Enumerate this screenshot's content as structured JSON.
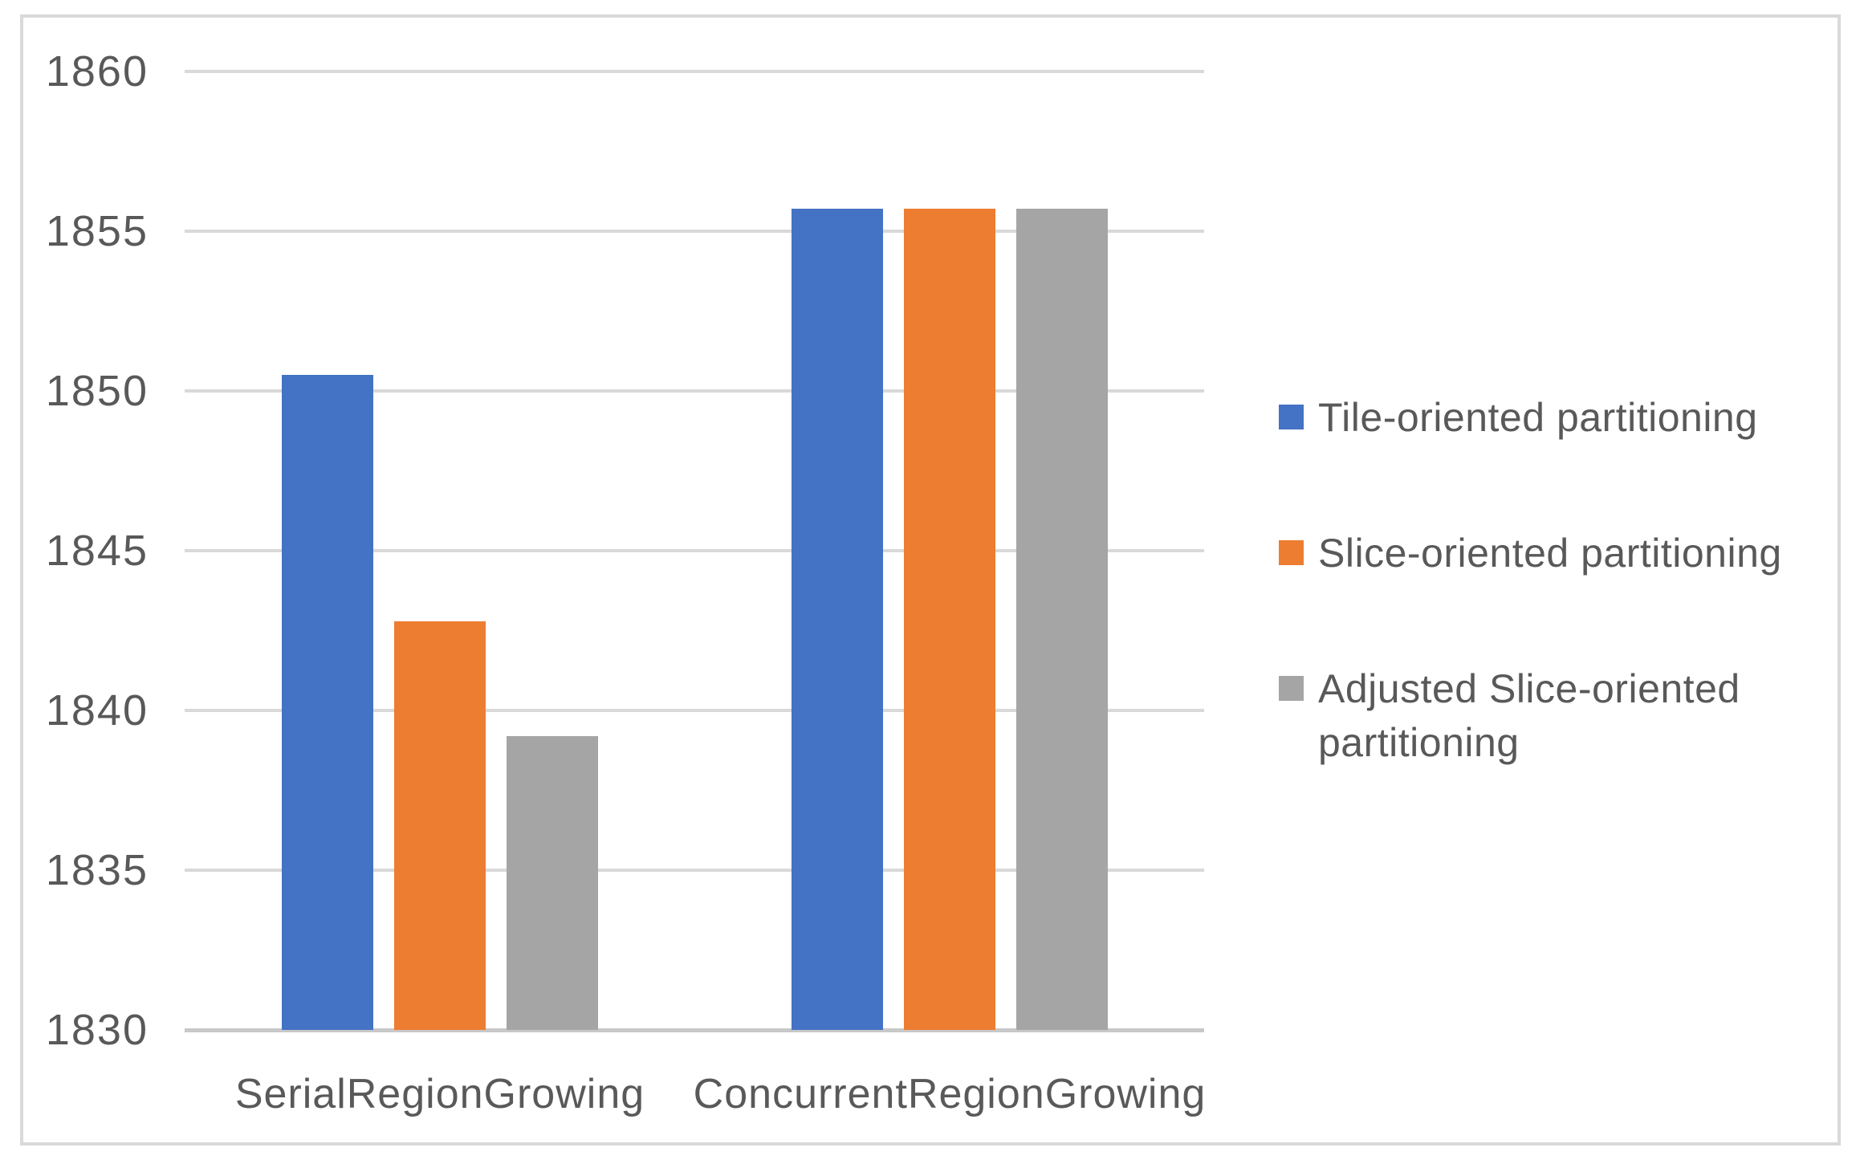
{
  "chart_data": {
    "type": "bar",
    "title": "",
    "categories": [
      "SerialRegionGrowing",
      "ConcurrentRegionGrowing"
    ],
    "series": [
      {
        "name": "Tile-oriented partitioning",
        "color": "#4472C4",
        "values": [
          1850.5,
          1855.7
        ]
      },
      {
        "name": "Slice-oriented partitioning",
        "color": "#ED7D31",
        "values": [
          1842.8,
          1855.7
        ]
      },
      {
        "name": "Adjusted Slice-oriented partitioning",
        "color": "#A5A5A5",
        "values": [
          1839.2,
          1855.7
        ]
      }
    ],
    "ylim": [
      1830,
      1860
    ],
    "ytick_step": 5,
    "yticks": [
      1830,
      1835,
      1840,
      1845,
      1850,
      1855,
      1860
    ],
    "xlabel": "",
    "ylabel": "",
    "grid": true,
    "legend_position": "right"
  },
  "colors": {
    "background": "#FFFFFF",
    "frame_border": "#D9D9D9",
    "gridline": "#D9D9D9",
    "axis_line": "#C8C8C8",
    "text": "#595959"
  }
}
